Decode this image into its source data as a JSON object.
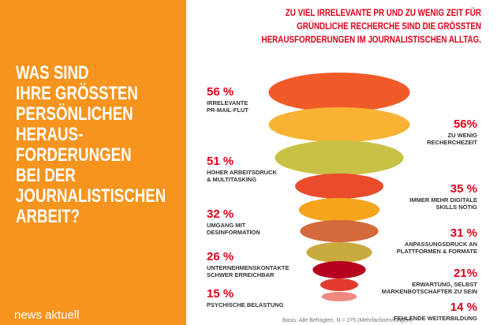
{
  "panel": {
    "heading": [
      "WAS SIND",
      "IHRE GRÖSSTEN",
      "PERSÖNLICHEN",
      "HERAUS-",
      "FORDERUNGEN",
      "BEI DER",
      "JOURNALISTISCHEN",
      "ARBEIT?"
    ],
    "brand": "news aktuell"
  },
  "chart_data": {
    "type": "funnel",
    "title": [
      "ZU VIEL IRRELEVANTE PR UND ZU WENIG ZEIT FÜR",
      "GRÜNDLICHE RECHERCHE SIND DIE GRÖSSTEN",
      "HERAUSFORDERUNGEN IM JOURNALISTISCHEN ALLTAG."
    ],
    "categories": [
      [
        "IRRELEVANTE",
        "PR-MAIL-FLUT"
      ],
      [
        "ZU WENIG",
        "RECHERCHEZEIT"
      ],
      [
        "HOHER ARBEITSDRUCK",
        "& MULTITASKING"
      ],
      [
        "IMMER MEHR DIGITALE",
        "SKILLS NÖTIG"
      ],
      [
        "UMGANG MIT",
        "DESINFORMATION"
      ],
      [
        "ANPASSUNGSDRUCK AN",
        "PLATTFORMEN & FORMATE"
      ],
      [
        "UNTERNEHMENSKONTAKTE",
        "SCHWER ERREICHBAR"
      ],
      [
        "ERWARTUNG, SELBST",
        "MARKENBOTSCHAFTER ZU SEIN"
      ],
      [
        "PSYCHISCHE BELASTUNG"
      ],
      [
        "FEHLENDE WEITERBILDUNG"
      ]
    ],
    "values": [
      56,
      56,
      51,
      35,
      32,
      31,
      26,
      21,
      15,
      14
    ],
    "value_labels": [
      "56 %",
      "56%",
      "51 %",
      "35 %",
      "32 %",
      "31 %",
      "26 %",
      "21%",
      "15 %",
      "14 %"
    ],
    "colors": [
      "#f05a28",
      "#f9b233",
      "#c9c145",
      "#ea4b2c",
      "#f4a51c",
      "#d4693c",
      "#c9aa3e",
      "#b5001f",
      "#e23b2e",
      "#f08a80"
    ],
    "note": "Basis: Alle Befragten, N = 275 (Mehrfachnennungen)"
  }
}
